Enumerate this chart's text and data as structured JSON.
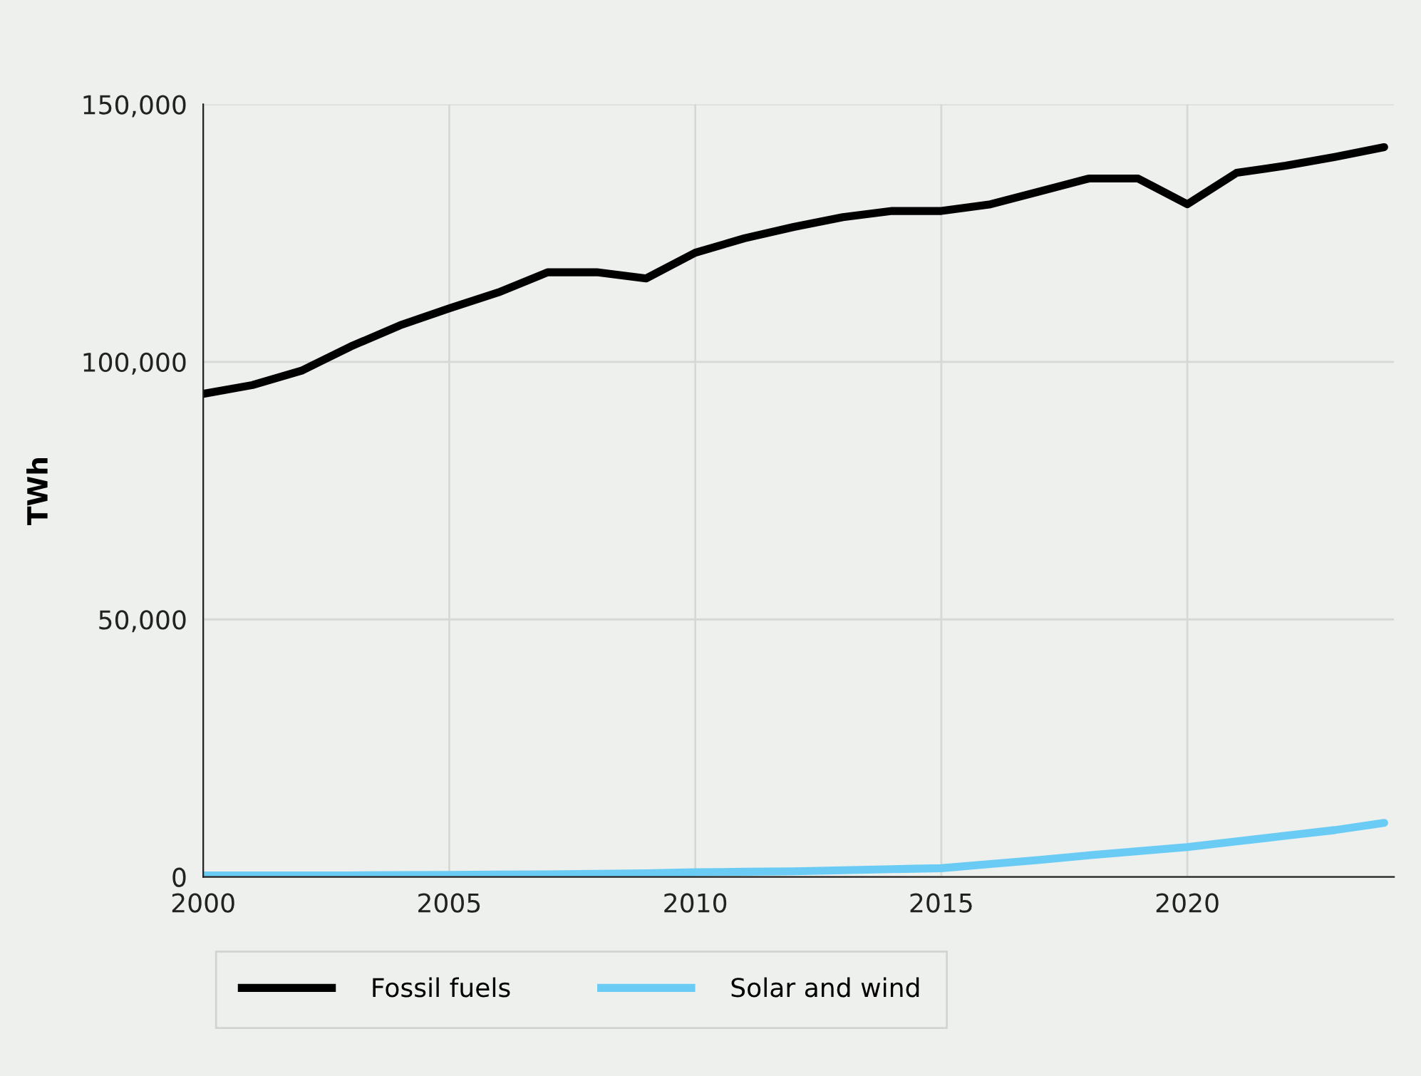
{
  "chart_data": {
    "type": "line",
    "ylabel": "TWh",
    "x": [
      2000,
      2001,
      2002,
      2003,
      2004,
      2005,
      2006,
      2007,
      2008,
      2009,
      2010,
      2011,
      2012,
      2013,
      2014,
      2015,
      2016,
      2017,
      2018,
      2019,
      2020,
      2021,
      2022,
      2023,
      2024
    ],
    "series": [
      {
        "name": "Fossil fuels",
        "color": "#000000",
        "values": [
          93800,
          95500,
          98300,
          103000,
          107100,
          110400,
          113500,
          117400,
          117400,
          116200,
          121200,
          124000,
          126200,
          128100,
          129300,
          129300,
          130600,
          133100,
          135600,
          135600,
          130600,
          136700,
          138100,
          139800,
          141700
        ]
      },
      {
        "name": "Solar and wind",
        "color": "#6accf5",
        "values": [
          300,
          300,
          300,
          300,
          350,
          400,
          450,
          500,
          600,
          700,
          900,
          1000,
          1100,
          1300,
          1500,
          1700,
          2500,
          3300,
          4200,
          5000,
          5800,
          6900,
          8000,
          9100,
          10500
        ]
      }
    ],
    "xlim": [
      2000,
      2024.2
    ],
    "xticks": [
      2000,
      2005,
      2010,
      2015,
      2020
    ],
    "ylim": [
      0,
      150000
    ],
    "yticks": [
      {
        "value": 0,
        "label": "0"
      },
      {
        "value": 50000,
        "label": "50,000"
      },
      {
        "value": 100000,
        "label": "100,000"
      },
      {
        "value": 150000,
        "label": "150,000"
      }
    ],
    "grid": true,
    "legend": "bottom",
    "line_style": "solid",
    "marker": "none"
  }
}
